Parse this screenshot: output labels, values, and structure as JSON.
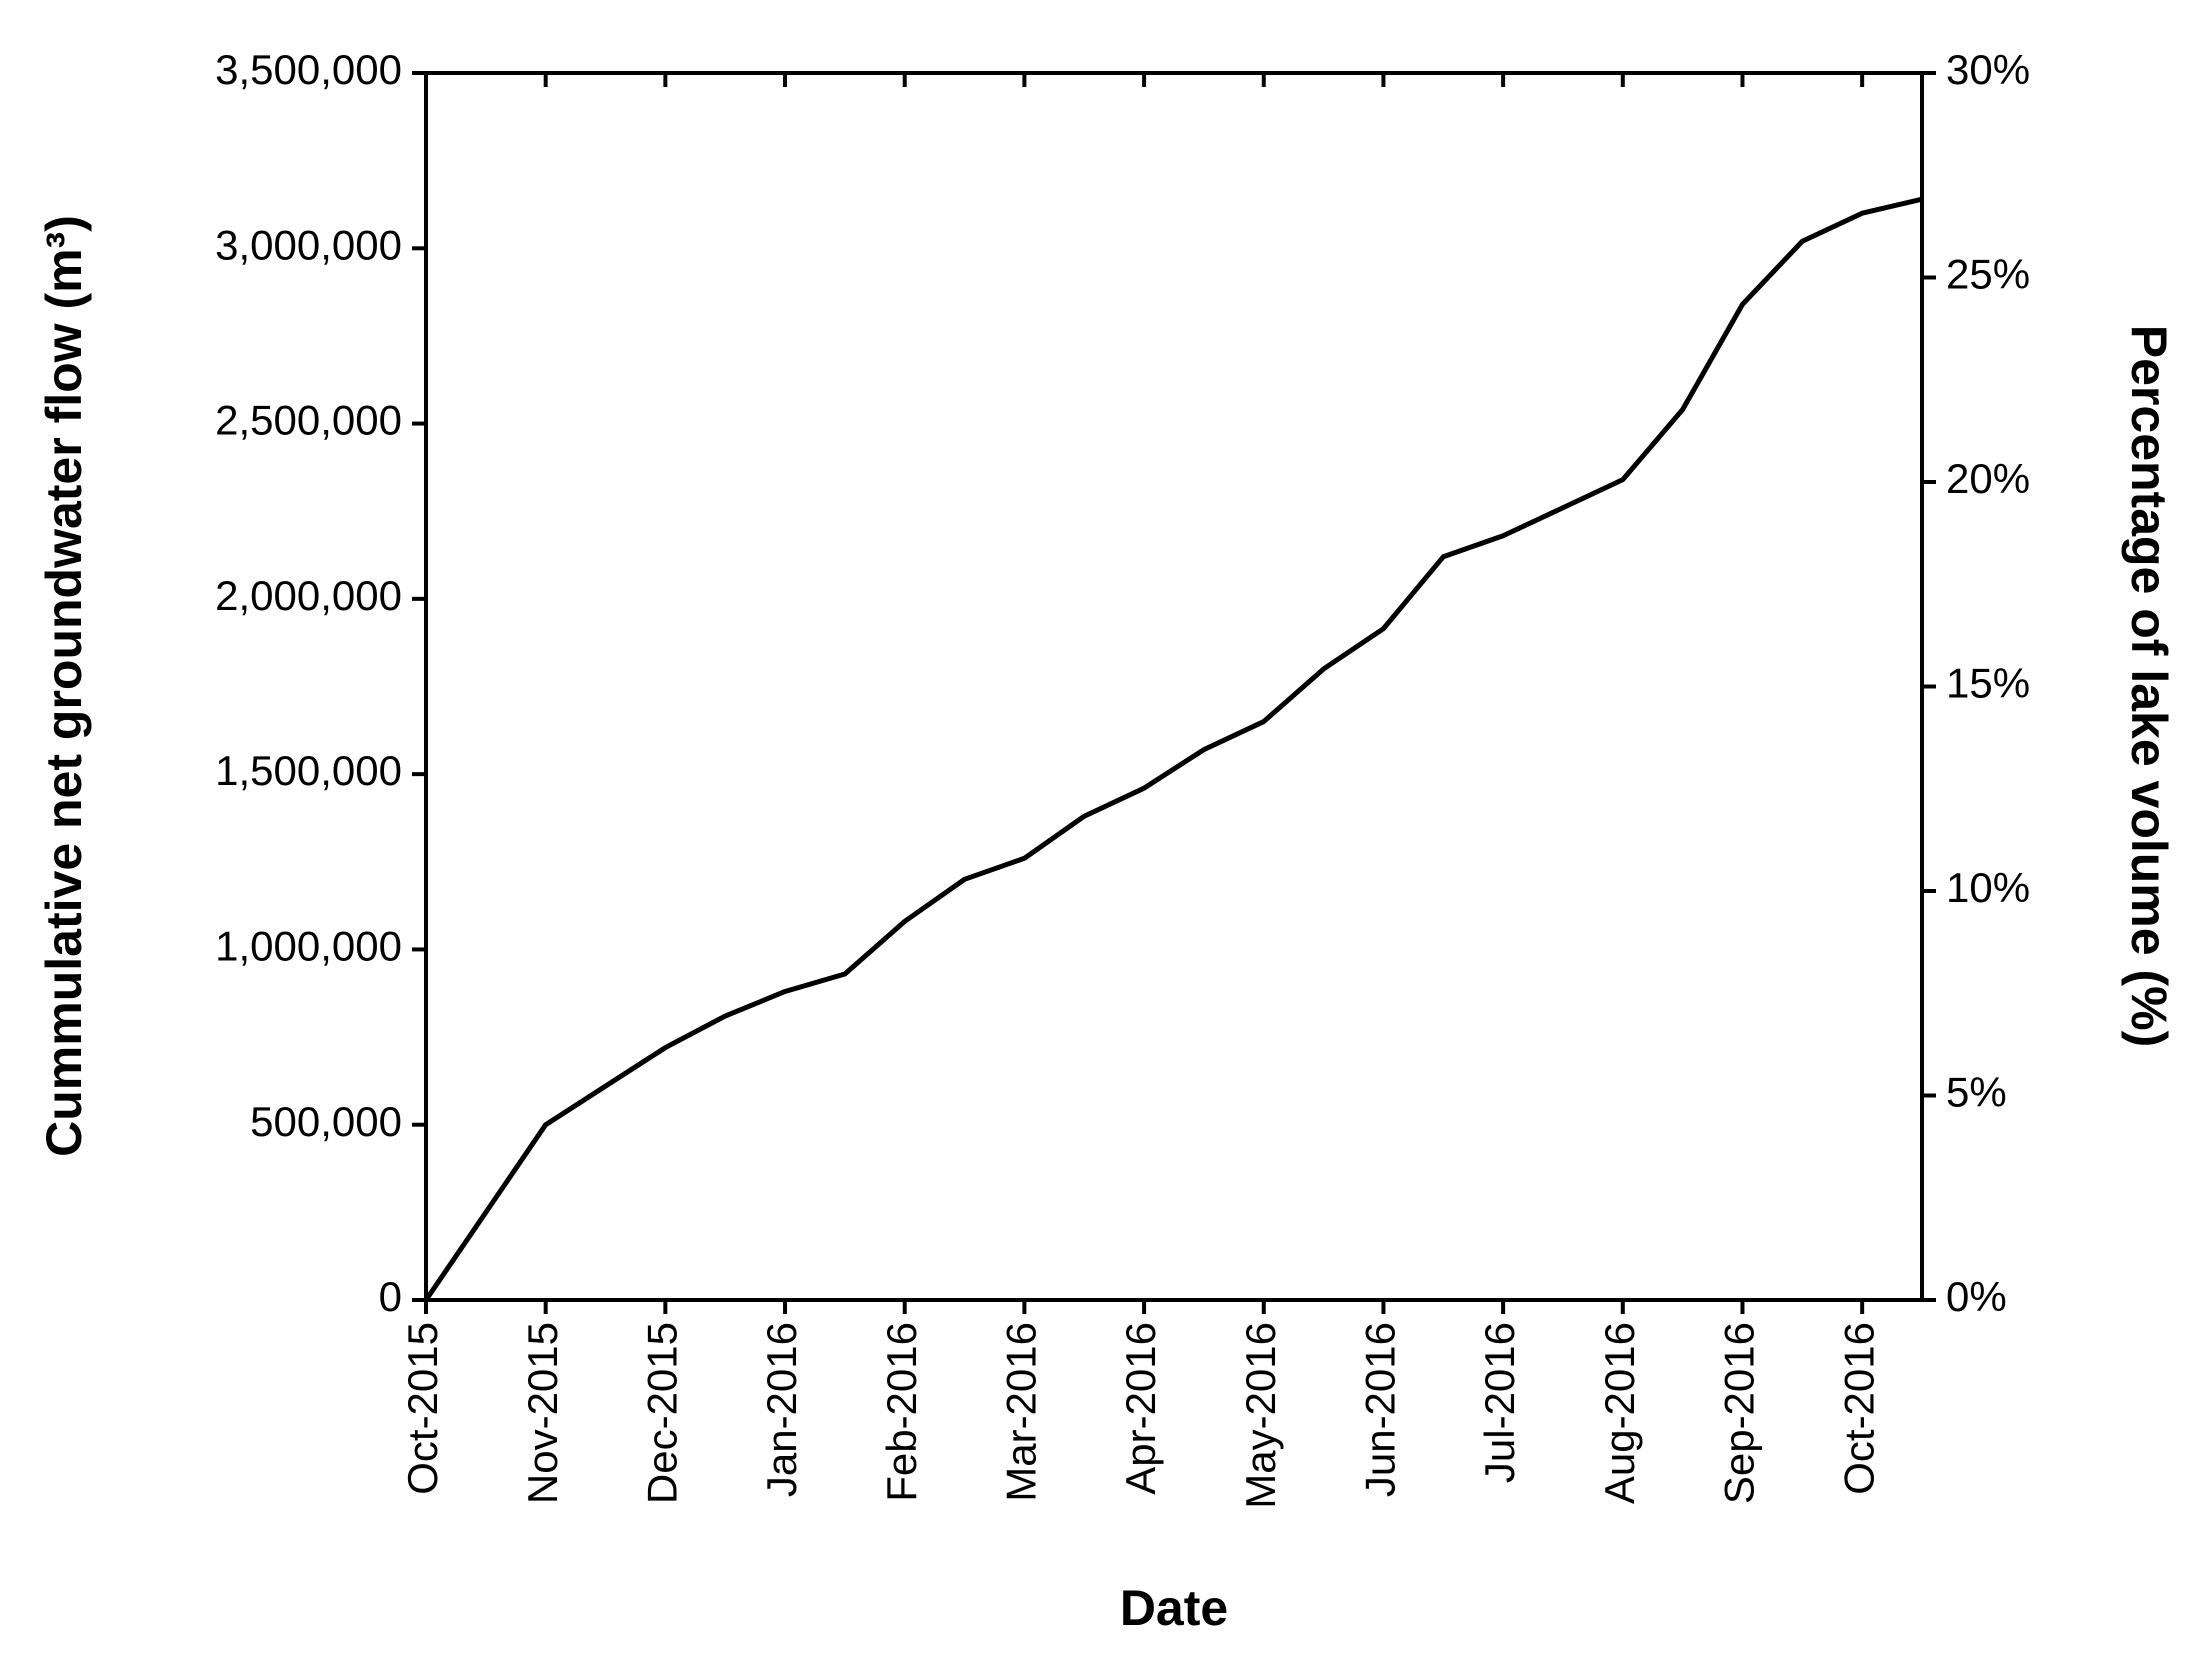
{
  "chart_data": {
    "type": "line",
    "x_label": "Date",
    "y_label": "Cummulative net groundwater flow (m³)",
    "y2_label": "Percentage of lake volume (%)",
    "categories": [
      "Oct-2015",
      null,
      "Nov-2015",
      null,
      "Dec-2015",
      null,
      "Jan-2016",
      null,
      "Feb-2016",
      null,
      "Mar-2016",
      null,
      "Apr-2016",
      null,
      "May-2016",
      null,
      "Jun-2016",
      null,
      "Jul-2016",
      null,
      "Aug-2016",
      null,
      "Sep-2016",
      null,
      "Oct-2016",
      null
    ],
    "series": [
      {
        "color": "#000000",
        "values": [
          0,
          250000,
          500000,
          610000,
          720000,
          810000,
          880000,
          930000,
          1080000,
          1200000,
          1260000,
          1380000,
          1460000,
          1570000,
          1650000,
          1800000,
          1915000,
          2120000,
          2180000,
          2260000,
          2340000,
          2540000,
          2840000,
          3020000,
          3100000,
          3140000
        ]
      }
    ],
    "ylim": [
      0,
      3500000
    ],
    "yticks": [
      0,
      {
        "value": 500000,
        "label": "500,000"
      },
      {
        "value": 1000000,
        "label": "1,000,000"
      },
      {
        "value": 1500000,
        "label": "1,500,000"
      },
      {
        "value": 2000000,
        "label": "2,000,000"
      },
      {
        "value": 2500000,
        "label": "2,500,000"
      },
      {
        "value": 3000000,
        "label": "3,000,000"
      },
      {
        "value": 3500000,
        "label": "3,500,000"
      }
    ],
    "y2lim": [
      0,
      30
    ],
    "y2ticks": [
      {
        "value": 0,
        "label": "0%"
      },
      {
        "value": 5,
        "label": "5%"
      },
      {
        "value": 10,
        "label": "10%"
      },
      {
        "value": 15,
        "label": "15%"
      },
      {
        "value": 20,
        "label": "20%"
      },
      {
        "value": 25,
        "label": "25%"
      },
      {
        "value": 30,
        "label": "30%"
      }
    ],
    "grid": false
  }
}
